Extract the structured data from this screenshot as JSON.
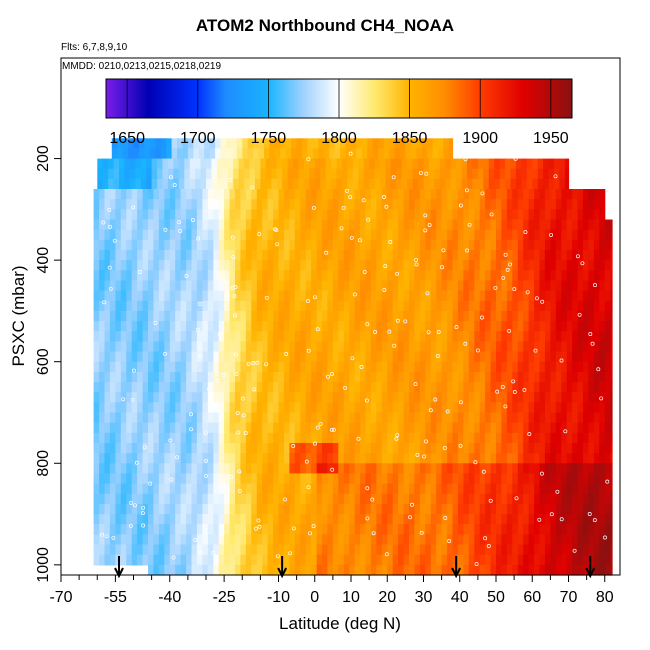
{
  "title": "ATOM2 Northbound CH4_NOAA",
  "subtitle_flights": "Flts: 6,7,8,9,10",
  "subtitle_dates": "MMDD: 0210,0213,0215,0218,0219",
  "colors": {
    "background": "#ffffff",
    "axis": "#000000",
    "marker": "#ffffff"
  },
  "chart_data": {
    "type": "heatmap",
    "title": "ATOM2 Northbound CH4_NOAA",
    "xlabel": "Latitude (deg N)",
    "ylabel": "PSXC (mbar)",
    "xlim": [
      -70,
      82
    ],
    "ylim": [
      1020,
      0
    ],
    "x_ticks": [
      -70,
      -55,
      -40,
      -25,
      -10,
      0,
      10,
      20,
      30,
      40,
      50,
      60,
      70,
      80
    ],
    "x_tick_labels": [
      "-70",
      "-55",
      "-40",
      "-25",
      "-10",
      "0",
      "10",
      "20",
      "30",
      "40",
      "50",
      "60",
      "70",
      "80"
    ],
    "y_ticks": [
      200,
      400,
      600,
      800,
      1000
    ],
    "y_tick_labels": [
      "200",
      "400",
      "600",
      "800",
      "1000"
    ],
    "grid": false,
    "colorbar": {
      "range": [
        1635,
        1965
      ],
      "ticks": [
        1650,
        1700,
        1750,
        1800,
        1850,
        1900,
        1950
      ],
      "tick_labels": [
        "1650",
        "1700",
        "1750",
        "1800",
        "1850",
        "1900",
        "1950"
      ],
      "colors": [
        "#7a1ee8",
        "#0000b4",
        "#0033ff",
        "#1e8cff",
        "#19b4ff",
        "#a0d2ff",
        "#ffffff",
        "#ffea70",
        "#ffb400",
        "#ff8c00",
        "#ff3c00",
        "#e00000",
        "#8c1010"
      ],
      "color_stops": [
        1635,
        1665,
        1700,
        1720,
        1750,
        1775,
        1800,
        1825,
        1850,
        1875,
        1900,
        1930,
        1965
      ]
    },
    "pressure_levels": [
      180,
      210,
      240,
      290,
      340,
      390,
      440,
      490,
      540,
      590,
      640,
      690,
      740,
      790,
      840,
      890,
      940,
      990
    ],
    "pressure_rows": [
      {
        "p_top": 160,
        "p_bot": 195,
        "lat_min": -56,
        "lat_max": 38
      },
      {
        "p_top": 195,
        "p_bot": 240,
        "lat_min": -60,
        "lat_max": 70
      },
      {
        "p_top": 240,
        "p_bot": 260,
        "lat_min": -60,
        "lat_max": 70
      },
      {
        "p_top": 260,
        "p_bot": 280,
        "lat_min": -61,
        "lat_max": 80
      },
      {
        "p_top": 280,
        "p_bot": 320,
        "lat_min": -61,
        "lat_max": 80
      },
      {
        "p_top": 320,
        "p_bot": 1000,
        "lat_min": -61,
        "lat_max": 82
      },
      {
        "p_top": 1000,
        "p_bot": 1020,
        "lat_min": -46,
        "lat_max": 82
      }
    ],
    "profile_by_lat": [
      {
        "lat": -60,
        "ch4": 1770
      },
      {
        "lat": -45,
        "ch4": 1772
      },
      {
        "lat": -35,
        "ch4": 1776
      },
      {
        "lat": -28,
        "ch4": 1790
      },
      {
        "lat": -22,
        "ch4": 1830
      },
      {
        "lat": -15,
        "ch4": 1850
      },
      {
        "lat": 0,
        "ch4": 1858
      },
      {
        "lat": 20,
        "ch4": 1862
      },
      {
        "lat": 35,
        "ch4": 1868
      },
      {
        "lat": 45,
        "ch4": 1880
      },
      {
        "lat": 55,
        "ch4": 1895
      },
      {
        "lat": 65,
        "ch4": 1920
      },
      {
        "lat": 80,
        "ch4": 1935
      }
    ],
    "annotations": [
      {
        "text": "flight boundary arrow",
        "lat": -54
      },
      {
        "text": "flight boundary arrow",
        "lat": -9
      },
      {
        "text": "flight boundary arrow",
        "lat": 39
      },
      {
        "text": "flight boundary arrow",
        "lat": 76
      }
    ]
  }
}
